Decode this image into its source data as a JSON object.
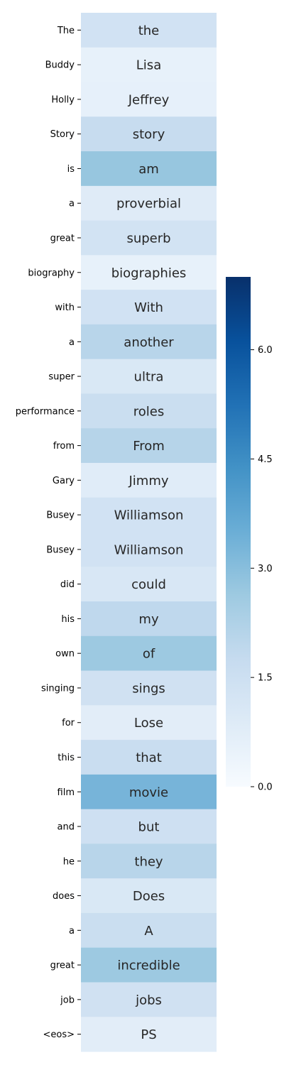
{
  "chart_data": {
    "type": "heatmap",
    "title": "",
    "xlabel": "",
    "ylabel": "",
    "colormap": "Blues",
    "vmin": 0,
    "vmax": 7,
    "rows": [
      {
        "label": "The",
        "annotation": "the",
        "value": 1.35
      },
      {
        "label": "Buddy",
        "annotation": "Lisa",
        "value": 0.55
      },
      {
        "label": "Holly",
        "annotation": "Jeffrey",
        "value": 0.6
      },
      {
        "label": "Story",
        "annotation": "story",
        "value": 1.7
      },
      {
        "label": "is",
        "annotation": "am",
        "value": 2.75
      },
      {
        "label": "a",
        "annotation": "proverbial",
        "value": 0.85
      },
      {
        "label": "great",
        "annotation": "superb",
        "value": 1.3
      },
      {
        "label": "biography",
        "annotation": "biographies",
        "value": 0.55
      },
      {
        "label": "with",
        "annotation": "With",
        "value": 1.35
      },
      {
        "label": "a",
        "annotation": "another",
        "value": 2.05
      },
      {
        "label": "super",
        "annotation": "ultra",
        "value": 1.05
      },
      {
        "label": "performance",
        "annotation": "roles",
        "value": 1.6
      },
      {
        "label": "from",
        "annotation": "From",
        "value": 2.1
      },
      {
        "label": "Gary",
        "annotation": "Jimmy",
        "value": 0.8
      },
      {
        "label": "Busey",
        "annotation": "Williamson",
        "value": 1.35
      },
      {
        "label": "Busey",
        "annotation": "Williamson",
        "value": 1.35
      },
      {
        "label": "did",
        "annotation": "could",
        "value": 1.1
      },
      {
        "label": "his",
        "annotation": "my",
        "value": 1.9
      },
      {
        "label": "own",
        "annotation": "of",
        "value": 2.65
      },
      {
        "label": "singing",
        "annotation": "sings",
        "value": 1.4
      },
      {
        "label": "for",
        "annotation": "Lose",
        "value": 0.75
      },
      {
        "label": "this",
        "annotation": "that",
        "value": 1.65
      },
      {
        "label": "film",
        "annotation": "movie",
        "value": 3.3
      },
      {
        "label": "and",
        "annotation": "but",
        "value": 1.45
      },
      {
        "label": "he",
        "annotation": "they",
        "value": 2.05
      },
      {
        "label": "does",
        "annotation": "Does",
        "value": 1.05
      },
      {
        "label": "a",
        "annotation": "A",
        "value": 1.6
      },
      {
        "label": "great",
        "annotation": "incredible",
        "value": 2.65
      },
      {
        "label": "job",
        "annotation": "jobs",
        "value": 1.4
      },
      {
        "label": "<eos>",
        "annotation": "PS",
        "value": 0.75
      }
    ],
    "colorbar": {
      "ticks": [
        0.0,
        1.5,
        3.0,
        4.5,
        6.0
      ],
      "tick_labels": [
        "0.0",
        "1.5",
        "3.0",
        "4.5",
        "6.0"
      ]
    },
    "grid": false
  }
}
